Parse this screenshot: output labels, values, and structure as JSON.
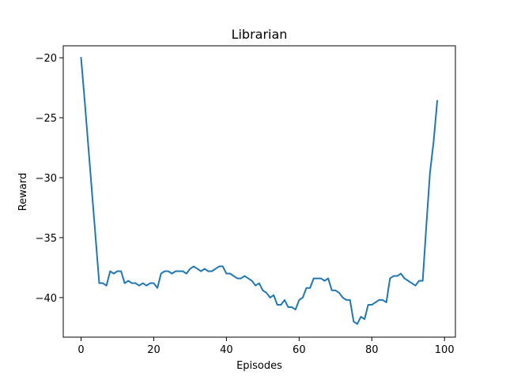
{
  "chart_data": {
    "type": "line",
    "title": "Librarian",
    "xlabel": "Episodes",
    "ylabel": "Reward",
    "xlim": [
      -4.9,
      103.0
    ],
    "ylim": [
      -43.3,
      -19.0
    ],
    "xticks": [
      0,
      20,
      40,
      60,
      80,
      100
    ],
    "xtick_labels": [
      "0",
      "20",
      "40",
      "60",
      "80",
      "100"
    ],
    "yticks": [
      -40,
      -35,
      -30,
      -25,
      -20
    ],
    "ytick_labels": [
      "−40",
      "−35",
      "−30",
      "−25",
      "−20"
    ],
    "grid": false,
    "legend": "none",
    "series": [
      {
        "color": "#1f77b4",
        "x": [
          0,
          1,
          2,
          3,
          4,
          5,
          6,
          7,
          8,
          9,
          10,
          11,
          12,
          13,
          14,
          15,
          16,
          17,
          18,
          19,
          20,
          21,
          22,
          23,
          24,
          25,
          26,
          27,
          28,
          29,
          30,
          31,
          32,
          33,
          34,
          35,
          36,
          37,
          38,
          39,
          40,
          41,
          42,
          43,
          44,
          45,
          46,
          47,
          48,
          49,
          50,
          51,
          52,
          53,
          54,
          55,
          56,
          57,
          58,
          59,
          60,
          61,
          62,
          63,
          64,
          65,
          66,
          67,
          68,
          69,
          70,
          71,
          72,
          73,
          74,
          75,
          76,
          77,
          78,
          79,
          80,
          81,
          82,
          83,
          84,
          85,
          86,
          87,
          88,
          89,
          90,
          91,
          92,
          93,
          94,
          95,
          96,
          97,
          98
        ],
        "y": [
          -20.0,
          -23.6,
          -27.4,
          -31.2,
          -35.0,
          -38.8,
          -38.8,
          -39.0,
          -37.8,
          -38.0,
          -37.8,
          -37.8,
          -38.8,
          -38.6,
          -38.8,
          -38.8,
          -39.0,
          -38.8,
          -39.0,
          -38.8,
          -38.8,
          -39.2,
          -38.0,
          -37.8,
          -37.8,
          -38.0,
          -37.8,
          -37.8,
          -37.8,
          -38.0,
          -37.6,
          -37.4,
          -37.6,
          -37.8,
          -37.6,
          -37.8,
          -37.8,
          -37.6,
          -37.4,
          -37.4,
          -38.0,
          -38.0,
          -38.2,
          -38.4,
          -38.4,
          -38.2,
          -38.4,
          -38.6,
          -39.0,
          -38.8,
          -39.4,
          -39.6,
          -40.0,
          -39.8,
          -40.6,
          -40.6,
          -40.2,
          -40.8,
          -40.8,
          -41.0,
          -40.2,
          -40.0,
          -39.2,
          -39.2,
          -38.4,
          -38.4,
          -38.4,
          -38.6,
          -38.4,
          -39.4,
          -39.4,
          -39.6,
          -40.0,
          -40.2,
          -40.2,
          -42.0,
          -42.2,
          -41.6,
          -41.8,
          -40.6,
          -40.6,
          -40.4,
          -40.2,
          -40.2,
          -40.4,
          -38.4,
          -38.2,
          -38.2,
          -38.0,
          -38.4,
          -38.6,
          -38.8,
          -39.0,
          -38.6,
          -38.6,
          -34.0,
          -29.6,
          -27.0,
          -23.6
        ]
      }
    ]
  }
}
